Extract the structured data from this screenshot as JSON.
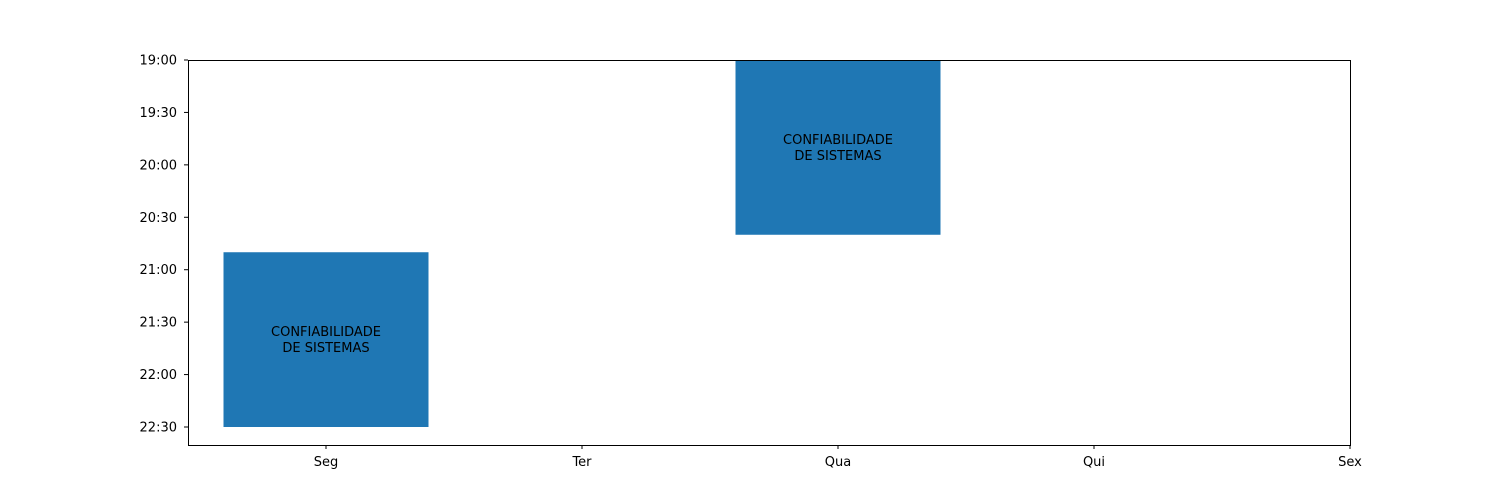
{
  "chart_data": {
    "type": "bar",
    "title": "",
    "xlabel": "",
    "ylabel": "",
    "categories": [
      "Seg",
      "Ter",
      "Qua",
      "Qui",
      "Sex"
    ],
    "y_ticks": [
      "19:00",
      "19:30",
      "20:00",
      "20:30",
      "21:00",
      "21:30",
      "22:00",
      "22:30"
    ],
    "y_axis_inverted": true,
    "grid": false,
    "bar_color": "#1f77b4",
    "events": [
      {
        "day": "Seg",
        "start": "20:50",
        "end": "22:30",
        "label_lines": [
          "CONFIABILIDADE",
          "DE SISTEMAS"
        ]
      },
      {
        "day": "Qua",
        "start": "19:00",
        "end": "20:40",
        "label_lines": [
          "CONFIABILIDADE",
          "DE SISTEMAS"
        ]
      }
    ]
  }
}
